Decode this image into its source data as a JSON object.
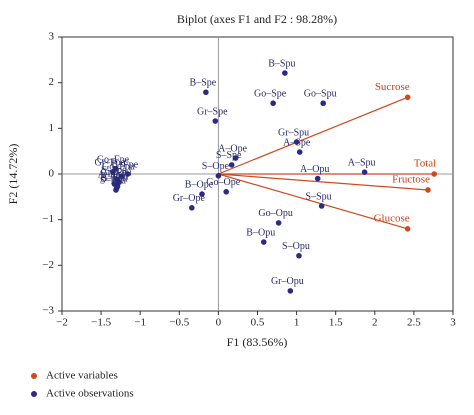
{
  "chart_data": {
    "type": "scatter",
    "title": "Biplot (axes F1 and F2 : 98.28%)",
    "x_label": "F1 (83.56%)",
    "y_label": "F2 (14.72%)",
    "xlim": [
      -2,
      3
    ],
    "ylim": [
      -3,
      3
    ],
    "xticks": [
      {
        "value": -2,
        "label": "−2"
      },
      {
        "value": -1.5,
        "label": "−1.5"
      },
      {
        "value": -1,
        "label": "−1"
      },
      {
        "value": -0.5,
        "label": "−0.5"
      },
      0,
      0.5,
      1,
      1.5,
      2,
      2.5,
      3
    ],
    "yticks": [
      {
        "value": -3,
        "label": "−3"
      },
      {
        "value": -2,
        "label": "−2"
      },
      {
        "value": -1,
        "label": "−1"
      },
      0,
      1,
      2,
      3
    ],
    "zero_lines": true,
    "series": [
      {
        "name": "Active variables",
        "color": "#d04a1e",
        "vectors": true,
        "labels": [
          "Sucrose",
          "Total",
          "Fructose",
          "Glucose"
        ],
        "x": [
          2.42,
          2.76,
          2.68,
          2.42
        ],
        "values": [
          1.68,
          0.0,
          -0.35,
          -1.2
        ]
      },
      {
        "name": "Active observations",
        "color": "#2b2b86",
        "vectors": false,
        "labels": [
          "B–Spu",
          "Go–Spu",
          "B–Spe",
          "Gr–Spe",
          "Go–Spe",
          "A–Ope",
          "S–Spe",
          "A–Spe",
          "Gr–Spu",
          "A–Spu",
          "A–Opu",
          "S–Spu",
          "Go–Opu",
          "B–Opu",
          "S–Opu",
          "Gr–Opu",
          "S–Ope",
          "Go–Ope",
          "B–Ope",
          "Gr–Ope",
          "B–Fpe",
          "Go–Fpe",
          "Gr–Fpe",
          "Go–Fpu",
          "S–Fpe",
          "Gr–Fpu",
          "A–Fpe",
          "A–Fpu",
          "B–Fpu",
          "S–Fpu"
        ],
        "x": [
          0.85,
          1.34,
          -0.16,
          -0.04,
          0.7,
          0.22,
          0.17,
          1.04,
          1.0,
          1.87,
          1.27,
          1.32,
          0.77,
          0.58,
          1.03,
          0.92,
          0.0,
          0.1,
          -0.21,
          -0.34,
          -1.16,
          -1.31,
          -1.35,
          -1.24,
          -1.3,
          -1.27,
          -1.33,
          -1.29,
          -1.3,
          -1.31
        ],
        "values": [
          2.21,
          1.55,
          1.79,
          1.16,
          1.55,
          0.35,
          0.2,
          0.48,
          0.7,
          0.04,
          -0.1,
          -0.7,
          -1.07,
          -1.49,
          -1.79,
          -2.56,
          -0.04,
          -0.39,
          -0.44,
          -0.74,
          0.0,
          0.11,
          0.04,
          -0.05,
          -0.12,
          -0.18,
          -0.22,
          -0.27,
          -0.31,
          -0.35
        ]
      }
    ]
  }
}
